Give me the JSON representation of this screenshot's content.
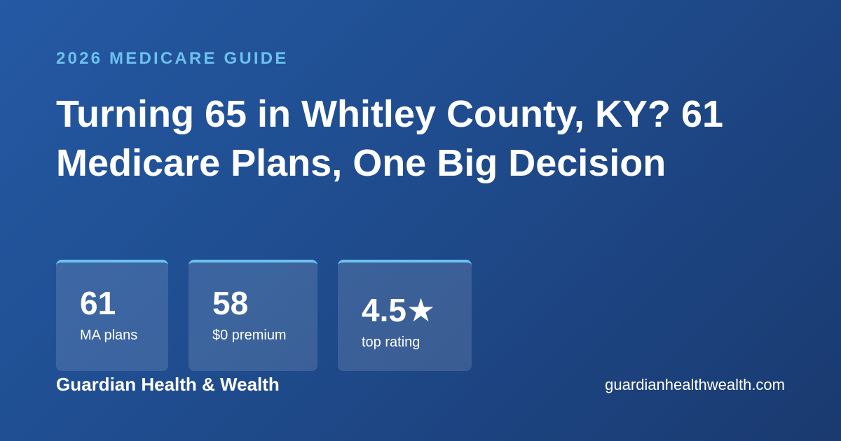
{
  "eyebrow": "2026 MEDICARE GUIDE",
  "title": "Turning 65 in Whitley County, KY? 61 Medicare Plans, One Big Decision",
  "stats": [
    {
      "value": "61",
      "label": "MA plans"
    },
    {
      "value": "58",
      "label": "$0 premium"
    },
    {
      "value": "4.5★",
      "label": "top rating"
    }
  ],
  "footer": {
    "brand": "Guardian Health & Wealth",
    "url": "guardianhealthwealth.com"
  }
}
